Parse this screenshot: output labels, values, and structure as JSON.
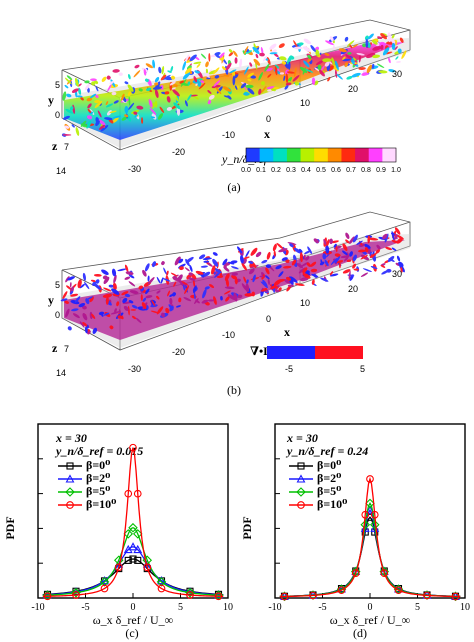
{
  "panel_a": {
    "caption": "(a)",
    "axis_x": "x",
    "axis_y": "y",
    "axis_z": "z",
    "x_ticks": [
      "-30",
      "-20",
      "-10",
      "0",
      "10",
      "20",
      "30"
    ],
    "y_ticks": [
      "5",
      "0"
    ],
    "z_ticks": [
      "7",
      "14"
    ],
    "colorbar_title": "y_n/δ_ref",
    "colorbar_ticks": [
      "0.0",
      "0.1",
      "0.2",
      "0.3",
      "0.4",
      "0.5",
      "0.6",
      "0.7",
      "0.8",
      "0.9",
      "1.0"
    ],
    "colorbar_colors": [
      "#1f3bff",
      "#00b7ff",
      "#00e0c0",
      "#31e23c",
      "#b8f000",
      "#ffdc00",
      "#ff8a00",
      "#ff2a10",
      "#e0106a",
      "#ff40ff",
      "#ffd8ff"
    ]
  },
  "panel_b": {
    "caption": "(b)",
    "axis_x": "x",
    "axis_y": "y",
    "axis_z": "z",
    "x_ticks": [
      "-30",
      "-20",
      "-10",
      "0",
      "10",
      "20",
      "30"
    ],
    "y_ticks": [
      "5",
      "0"
    ],
    "z_ticks": [
      "7",
      "14"
    ],
    "legend_label": "∇•L",
    "legend_min": "-5",
    "legend_max": "5",
    "legend_colors": [
      "#1f1fff",
      "#ff1020"
    ]
  },
  "panel_c": {
    "caption": "(c)",
    "annotation_x": "x = 30",
    "annotation_y": "y_n/δ_ref = 0.015",
    "ylabel": "PDF",
    "xlabel": "ω_x δ_ref / U_∞",
    "legend": [
      "β=0⁰",
      "β=2⁰",
      "β=5⁰",
      "β=10⁰"
    ]
  },
  "panel_d": {
    "caption": "(d)",
    "annotation_x": "x = 30",
    "annotation_y": "y_n/δ_ref = 0.24",
    "ylabel": "PDF",
    "xlabel": "ω_x δ_ref / U_∞",
    "legend": [
      "β=0⁰",
      "β=2⁰",
      "β=5⁰",
      "β=10⁰"
    ]
  },
  "chart_data": [
    {
      "type": "line",
      "panel": "c",
      "xlabel": "ω_x δ_ref / U_∞",
      "ylabel": "PDF",
      "xlim": [
        -10,
        10
      ],
      "ylim": [
        0,
        1
      ],
      "xticks": [
        -10,
        -5,
        0,
        5,
        10
      ],
      "yticks": [
        0,
        0.2,
        0.4,
        0.6,
        0.8,
        1
      ],
      "series": [
        {
          "name": "β=0⁰",
          "color": "#000000",
          "marker": "square",
          "peak": 0.22,
          "width": 2.6
        },
        {
          "name": "β=2⁰",
          "color": "#1a1aff",
          "marker": "triangle",
          "peak": 0.29,
          "width": 2.1
        },
        {
          "name": "β=5⁰",
          "color": "#00c000",
          "marker": "diamond",
          "peak": 0.4,
          "width": 1.6
        },
        {
          "name": "β=10⁰",
          "color": "#ff0000",
          "marker": "circle",
          "peak": 0.86,
          "width": 0.75
        }
      ]
    },
    {
      "type": "line",
      "panel": "d",
      "xlabel": "ω_x δ_ref / U_∞",
      "ylabel": "PDF",
      "xlim": [
        -10,
        10
      ],
      "ylim": [
        0,
        1
      ],
      "xticks": [
        -10,
        -5,
        0,
        5,
        10
      ],
      "yticks": [
        0,
        0.2,
        0.4,
        0.6,
        0.8,
        1
      ],
      "series": [
        {
          "name": "β=0⁰",
          "color": "#000000",
          "marker": "square",
          "peak": 0.46,
          "width": 1.05
        },
        {
          "name": "β=2⁰",
          "color": "#1a1aff",
          "marker": "triangle",
          "peak": 0.5,
          "width": 0.98
        },
        {
          "name": "β=5⁰",
          "color": "#00c000",
          "marker": "diamond",
          "peak": 0.54,
          "width": 0.92
        },
        {
          "name": "β=10⁰",
          "color": "#ff0000",
          "marker": "circle",
          "peak": 0.68,
          "width": 0.76
        }
      ]
    }
  ]
}
